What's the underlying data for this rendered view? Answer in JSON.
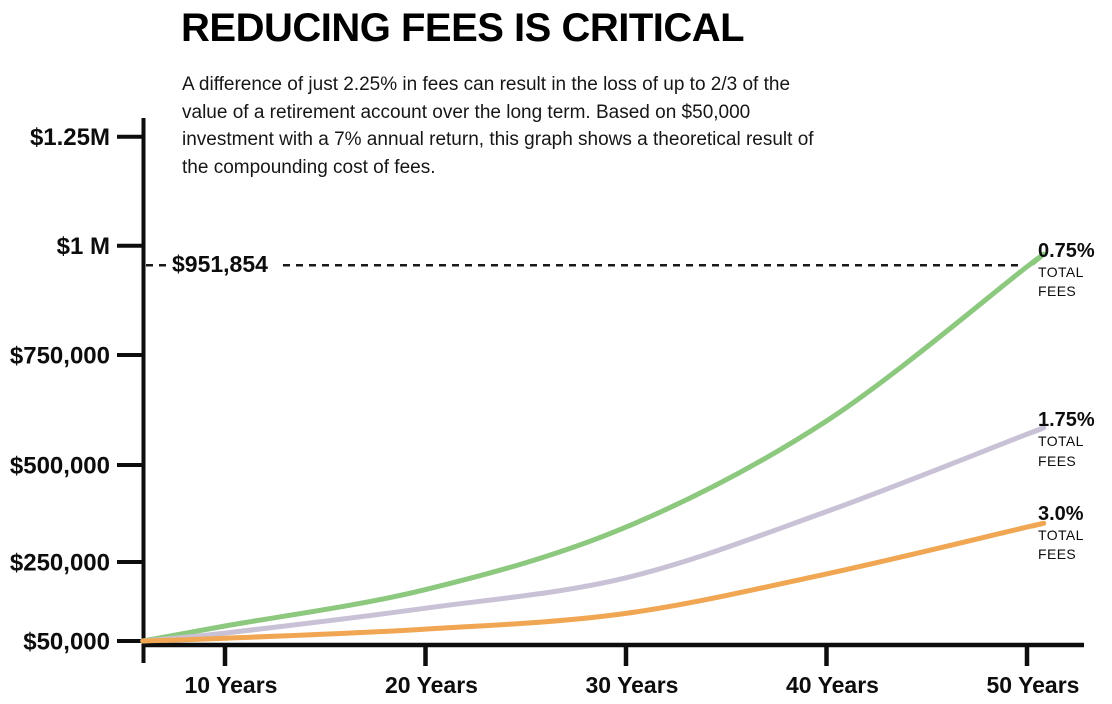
{
  "accent_colors": {
    "axis": "#0d0d0d",
    "text": "#161616",
    "dashed_line": "#1a1a1a"
  },
  "chart_data": {
    "type": "line",
    "title": "REDUCING FEES IS CRITICAL",
    "subtitle": "A difference of just 2.25% in fees can result in the loss of up to 2/3 of the value of a retirement account over the long term. Based on $50,000 investment with a 7% annual return, this graph shows a theoretical result of the compounding cost of fees.",
    "assumptions": {
      "fee_difference": "2.25%",
      "initial_investment": "$50,000",
      "annual_return": "7%"
    },
    "x_unit": "years",
    "x": [
      5.9,
      10,
      20,
      30,
      40,
      50
    ],
    "x_ticks": [
      {
        "value": 10,
        "label": "10 Years"
      },
      {
        "value": 20,
        "label": "20 Years"
      },
      {
        "value": 30,
        "label": "30 Years"
      },
      {
        "value": 40,
        "label": "40 Years"
      },
      {
        "value": 50,
        "label": "50 Years"
      }
    ],
    "y_ticks": [
      {
        "value": 1250000,
        "label": "$1.25M"
      },
      {
        "value": 1000000,
        "label": "$1 M"
      },
      {
        "value": 750000,
        "label": "$750,000"
      },
      {
        "value": 500000,
        "label": "$500,000"
      },
      {
        "value": 250000,
        "label": "$250,000"
      },
      {
        "value": 50000,
        "label": "$50,000"
      }
    ],
    "ylim": [
      50000,
      1250000
    ],
    "grid": false,
    "legend_position": "right-end-labels",
    "annotation": {
      "label": "$951,854",
      "value": 951854
    },
    "fees_sublabel": [
      "TOTAL",
      "FEES"
    ],
    "series": [
      {
        "fee_label": "0.75%",
        "name": "0.75% TOTAL FEES",
        "color": "#8CC87E",
        "values": [
          50000,
          88000,
          180000,
          340000,
          600000,
          951854
        ]
      },
      {
        "fee_label": "1.75%",
        "name": "1.75% TOTAL FEES",
        "color": "#C9C1D5",
        "values": [
          50000,
          70000,
          133000,
          210000,
          380000,
          570000
        ]
      },
      {
        "fee_label": "3.0%",
        "name": "3.0% TOTAL FEES",
        "color": "#F0A652",
        "values": [
          50000,
          57000,
          80000,
          120000,
          220000,
          340000
        ]
      }
    ]
  }
}
